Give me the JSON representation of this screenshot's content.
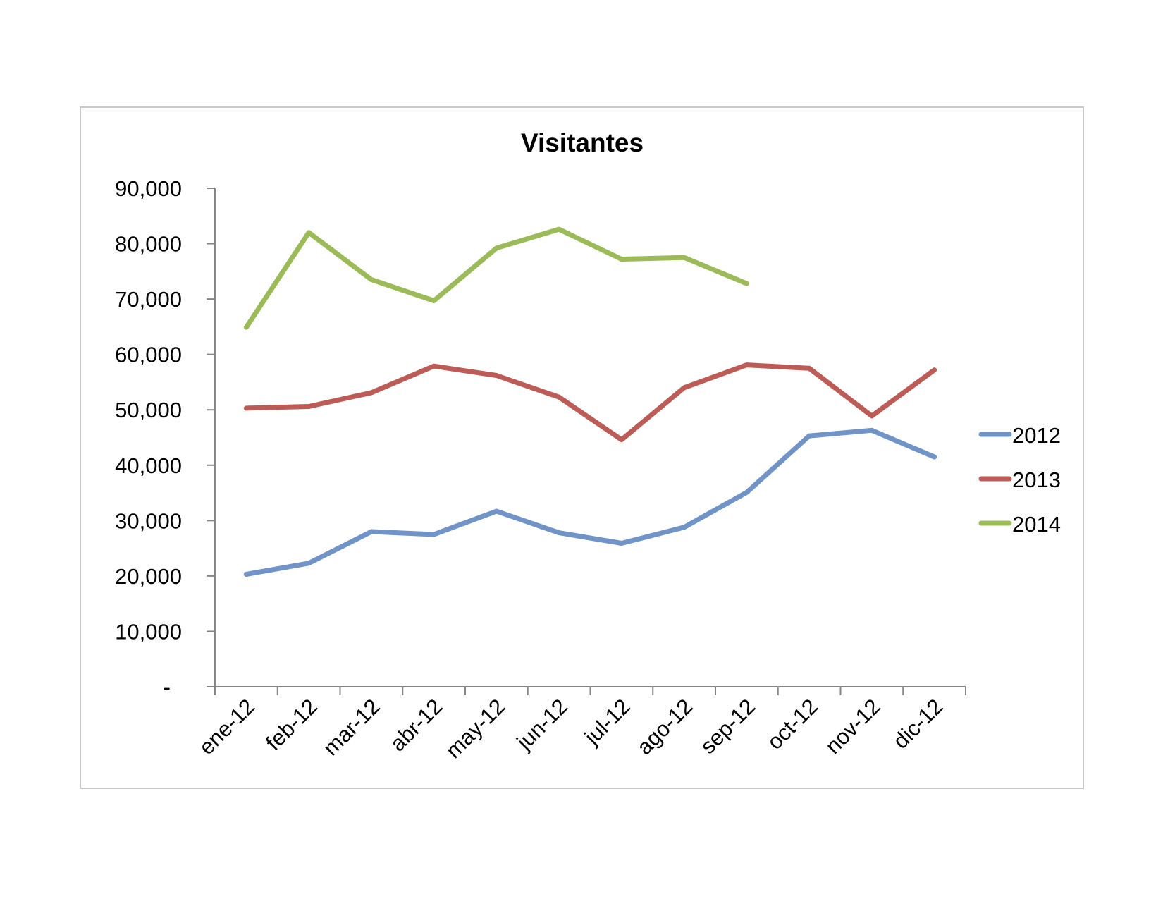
{
  "chart_data": {
    "type": "line",
    "title": "Visitantes",
    "xlabel": "",
    "ylabel": "",
    "categories": [
      "ene-12",
      "feb-12",
      "mar-12",
      "abr-12",
      "may-12",
      "jun-12",
      "jul-12",
      "ago-12",
      "sep-12",
      "oct-12",
      "nov-12",
      "dic-12"
    ],
    "y_ticks": [
      "-",
      "10,000",
      "20,000",
      "30,000",
      "40,000",
      "50,000",
      "60,000",
      "70,000",
      "80,000",
      "90,000"
    ],
    "ylim": [
      0,
      90000
    ],
    "grid": false,
    "legend_position": "right",
    "series": [
      {
        "name": "2012",
        "color": "#7093c8",
        "values": [
          20300,
          22300,
          28000,
          27500,
          31700,
          27800,
          25900,
          28800,
          35100,
          45300,
          46300,
          41500
        ]
      },
      {
        "name": "2013",
        "color": "#bd5b57",
        "values": [
          50300,
          50600,
          53100,
          57900,
          56200,
          52300,
          44600,
          54000,
          58100,
          57500,
          48900,
          57200
        ]
      },
      {
        "name": "2014",
        "color": "#9bbb59",
        "values": [
          64900,
          82000,
          73500,
          69700,
          79200,
          82600,
          77200,
          77500,
          72800,
          null,
          null,
          null
        ]
      }
    ]
  }
}
